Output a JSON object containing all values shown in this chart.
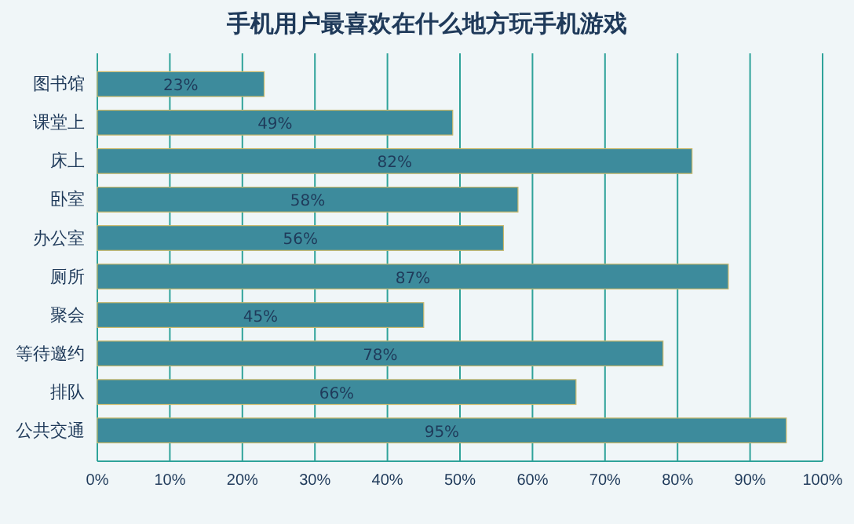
{
  "chart_data": {
    "type": "bar",
    "orientation": "horizontal",
    "title": "手机用户最喜欢在什么地方玩手机游戏",
    "categories": [
      "图书馆",
      "课堂上",
      "床上",
      "卧室",
      "办公室",
      "厕所",
      "聚会",
      "等待邀约",
      "排队",
      "公共交通"
    ],
    "values": [
      23,
      49,
      82,
      58,
      56,
      87,
      45,
      78,
      66,
      95
    ],
    "value_labels": [
      "23%",
      "49%",
      "82%",
      "58%",
      "56%",
      "87%",
      "45%",
      "78%",
      "66%",
      "95%"
    ],
    "color": "#3d8b9c",
    "xlim": [
      0,
      100
    ],
    "xticks": [
      {
        "value": 0,
        "label": "0%"
      },
      {
        "value": 10,
        "label": "10%"
      },
      {
        "value": 20,
        "label": "20%"
      },
      {
        "value": 30,
        "label": "30%"
      },
      {
        "value": 40,
        "label": "40%"
      },
      {
        "value": 50,
        "label": "50%"
      },
      {
        "value": 60,
        "label": "60%"
      },
      {
        "value": 70,
        "label": "70%"
      },
      {
        "value": 80,
        "label": "80%"
      },
      {
        "value": 90,
        "label": "90%"
      },
      {
        "value": 100,
        "label": "100%"
      }
    ],
    "grid": "x"
  }
}
